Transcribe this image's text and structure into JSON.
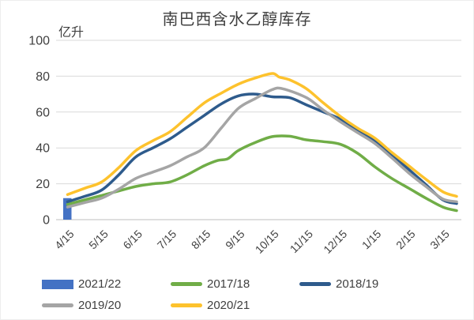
{
  "chart": {
    "title": "南巴西含水乙醇库存",
    "unit_label": "亿升",
    "y_ticks": [
      0,
      20,
      40,
      60,
      80,
      100
    ],
    "x_labels": [
      "4/15",
      "5/15",
      "6/15",
      "7/15",
      "8/15",
      "9/15",
      "10/15",
      "11/15",
      "12/15",
      "1/15",
      "2/15",
      "3/15"
    ],
    "colors": {
      "grid": "#d9d9d9",
      "axis": "#bfbfbf",
      "text": "#404040"
    }
  },
  "chart_data": {
    "type": "line",
    "title": "南巴西含水乙醇库存",
    "ylabel": "亿升",
    "ylim": [
      0,
      100
    ],
    "grid": true,
    "legend_position": "bottom",
    "x_unit": "months_from_4_15",
    "x_categories": [
      "4/15",
      "5/15",
      "6/15",
      "7/15",
      "8/15",
      "9/15",
      "10/15",
      "11/15",
      "12/15",
      "1/15",
      "2/15",
      "3/15"
    ],
    "series": [
      {
        "name": "2021/22",
        "type": "bar",
        "color": "#4472c4",
        "points": [
          [
            0,
            12
          ]
        ]
      },
      {
        "name": "2017/18",
        "type": "line",
        "color": "#70ad47",
        "points": [
          [
            0,
            8.5
          ],
          [
            0.5,
            11
          ],
          [
            1,
            13.5
          ],
          [
            1.5,
            16
          ],
          [
            2,
            18.5
          ],
          [
            2.5,
            20
          ],
          [
            3,
            21
          ],
          [
            3.5,
            25
          ],
          [
            4,
            30
          ],
          [
            4.4,
            33
          ],
          [
            4.7,
            34
          ],
          [
            5,
            38.5
          ],
          [
            5.5,
            43
          ],
          [
            6,
            46.3
          ],
          [
            6.5,
            46.5
          ],
          [
            7,
            44.5
          ],
          [
            7.5,
            43.5
          ],
          [
            8,
            42
          ],
          [
            8.5,
            37
          ],
          [
            9,
            29.5
          ],
          [
            9.5,
            23
          ],
          [
            10,
            17.5
          ],
          [
            10.5,
            12
          ],
          [
            11,
            7
          ],
          [
            11.4,
            5
          ]
        ]
      },
      {
        "name": "2018/19",
        "type": "line",
        "color": "#2e5b8c",
        "points": [
          [
            0,
            10
          ],
          [
            0.5,
            13
          ],
          [
            1,
            16.5
          ],
          [
            1.5,
            25
          ],
          [
            2,
            35
          ],
          [
            2.5,
            40
          ],
          [
            3,
            45
          ],
          [
            3.5,
            51.5
          ],
          [
            4,
            58
          ],
          [
            4.5,
            64.5
          ],
          [
            5,
            69
          ],
          [
            5.5,
            70
          ],
          [
            6,
            68.5
          ],
          [
            6.5,
            68
          ],
          [
            7,
            64
          ],
          [
            7.5,
            60
          ],
          [
            8,
            56
          ],
          [
            8.5,
            50
          ],
          [
            9,
            44
          ],
          [
            9.5,
            36
          ],
          [
            10,
            28
          ],
          [
            10.5,
            19.5
          ],
          [
            11,
            11
          ],
          [
            11.4,
            9
          ]
        ]
      },
      {
        "name": "2019/20",
        "type": "line",
        "color": "#a5a5a5",
        "points": [
          [
            0,
            7
          ],
          [
            0.5,
            9.5
          ],
          [
            1,
            12
          ],
          [
            1.5,
            17
          ],
          [
            2,
            23
          ],
          [
            2.5,
            26.5
          ],
          [
            3,
            30
          ],
          [
            3.5,
            35
          ],
          [
            4,
            40
          ],
          [
            4.5,
            51
          ],
          [
            5,
            62
          ],
          [
            5.5,
            67.5
          ],
          [
            6,
            72.5
          ],
          [
            6.3,
            73
          ],
          [
            7,
            68
          ],
          [
            7.5,
            61
          ],
          [
            8,
            54.5
          ],
          [
            8.5,
            48.5
          ],
          [
            9,
            42.5
          ],
          [
            9.5,
            34.5
          ],
          [
            10,
            26
          ],
          [
            10.5,
            18.5
          ],
          [
            11,
            11.5
          ],
          [
            11.4,
            10
          ]
        ]
      },
      {
        "name": "2020/21",
        "type": "line",
        "color": "#fdc22d",
        "points": [
          [
            0,
            14
          ],
          [
            0.5,
            17.5
          ],
          [
            1,
            21
          ],
          [
            1.5,
            29
          ],
          [
            2,
            38.5
          ],
          [
            2.5,
            44
          ],
          [
            3,
            49
          ],
          [
            3.5,
            57
          ],
          [
            4,
            65
          ],
          [
            4.5,
            70.5
          ],
          [
            5,
            75.5
          ],
          [
            5.5,
            79
          ],
          [
            6,
            81.5
          ],
          [
            6.2,
            79.5
          ],
          [
            6.5,
            78
          ],
          [
            7,
            73
          ],
          [
            7.5,
            65
          ],
          [
            8,
            57.5
          ],
          [
            8.5,
            51
          ],
          [
            9,
            45.5
          ],
          [
            9.5,
            37.5
          ],
          [
            10,
            30
          ],
          [
            10.5,
            22.5
          ],
          [
            11,
            15.5
          ],
          [
            11.4,
            13
          ]
        ]
      }
    ],
    "legend_order": [
      "2021/22",
      "2017/18",
      "2018/19",
      "2019/20",
      "2020/21"
    ]
  }
}
